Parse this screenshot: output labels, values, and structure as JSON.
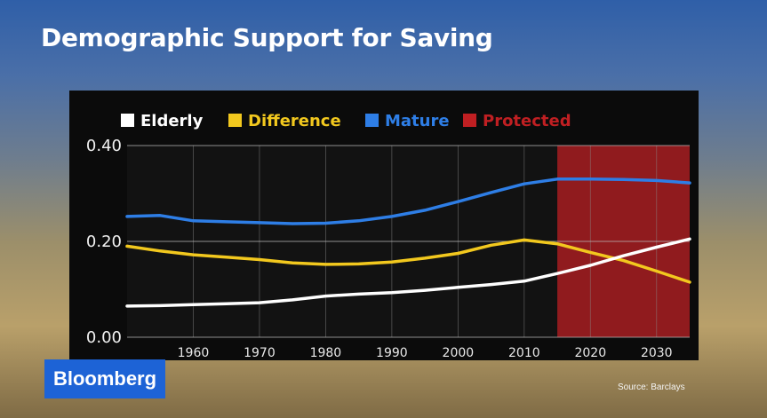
{
  "header": {
    "title": "Demographic Support for Saving"
  },
  "branding": {
    "logo_text": "Bloomberg"
  },
  "footer": {
    "source": "Source: Barclays"
  },
  "colors": {
    "elderly": "#ffffff",
    "difference": "#f2c81e",
    "mature": "#2e7ee6",
    "protected": "#c01f22"
  },
  "chart_data": {
    "type": "line",
    "title": "Demographic Support for Saving",
    "x_ticks": [
      "1960",
      "1970",
      "1980",
      "1990",
      "2000",
      "2010",
      "2020",
      "2030"
    ],
    "y_ticks": [
      "0.00",
      "0.20",
      "0.40"
    ],
    "xlim": [
      1950,
      2035
    ],
    "ylim": [
      0,
      0.4
    ],
    "grid": true,
    "legend_placement": "top-left",
    "series": [
      {
        "name": "Elderly",
        "color": "#ffffff",
        "x": [
          1950,
          1955,
          1960,
          1965,
          1970,
          1975,
          1980,
          1985,
          1990,
          1995,
          2000,
          2005,
          2010,
          2015,
          2020,
          2025,
          2030,
          2035
        ],
        "y": [
          0.065,
          0.066,
          0.068,
          0.07,
          0.072,
          0.078,
          0.086,
          0.09,
          0.093,
          0.098,
          0.104,
          0.11,
          0.117,
          0.133,
          0.15,
          0.17,
          0.188,
          0.205
        ]
      },
      {
        "name": "Difference",
        "color": "#f2c81e",
        "x": [
          1950,
          1955,
          1960,
          1965,
          1970,
          1975,
          1980,
          1985,
          1990,
          1995,
          2000,
          2005,
          2010,
          2015,
          2020,
          2025,
          2030,
          2035
        ],
        "y": [
          0.19,
          0.18,
          0.172,
          0.167,
          0.162,
          0.155,
          0.152,
          0.153,
          0.157,
          0.165,
          0.175,
          0.192,
          0.203,
          0.195,
          0.177,
          0.16,
          0.138,
          0.115
        ]
      },
      {
        "name": "Mature",
        "color": "#2e7ee6",
        "x": [
          1950,
          1955,
          1960,
          1965,
          1970,
          1975,
          1980,
          1985,
          1990,
          1995,
          2000,
          2005,
          2010,
          2015,
          2020,
          2025,
          2030,
          2035
        ],
        "y": [
          0.252,
          0.254,
          0.243,
          0.241,
          0.239,
          0.237,
          0.238,
          0.243,
          0.252,
          0.265,
          0.283,
          0.302,
          0.32,
          0.33,
          0.33,
          0.329,
          0.327,
          0.322
        ]
      }
    ],
    "shaded_regions": [
      {
        "name": "Protected",
        "x_start": 2015,
        "x_end": 2035,
        "color": "#c01f22"
      }
    ],
    "legend": [
      {
        "label": "Elderly",
        "color": "#ffffff"
      },
      {
        "label": "Difference",
        "color": "#f2c81e"
      },
      {
        "label": "Mature",
        "color": "#2e7ee6"
      },
      {
        "label": "Protected",
        "color": "#c01f22"
      }
    ]
  }
}
